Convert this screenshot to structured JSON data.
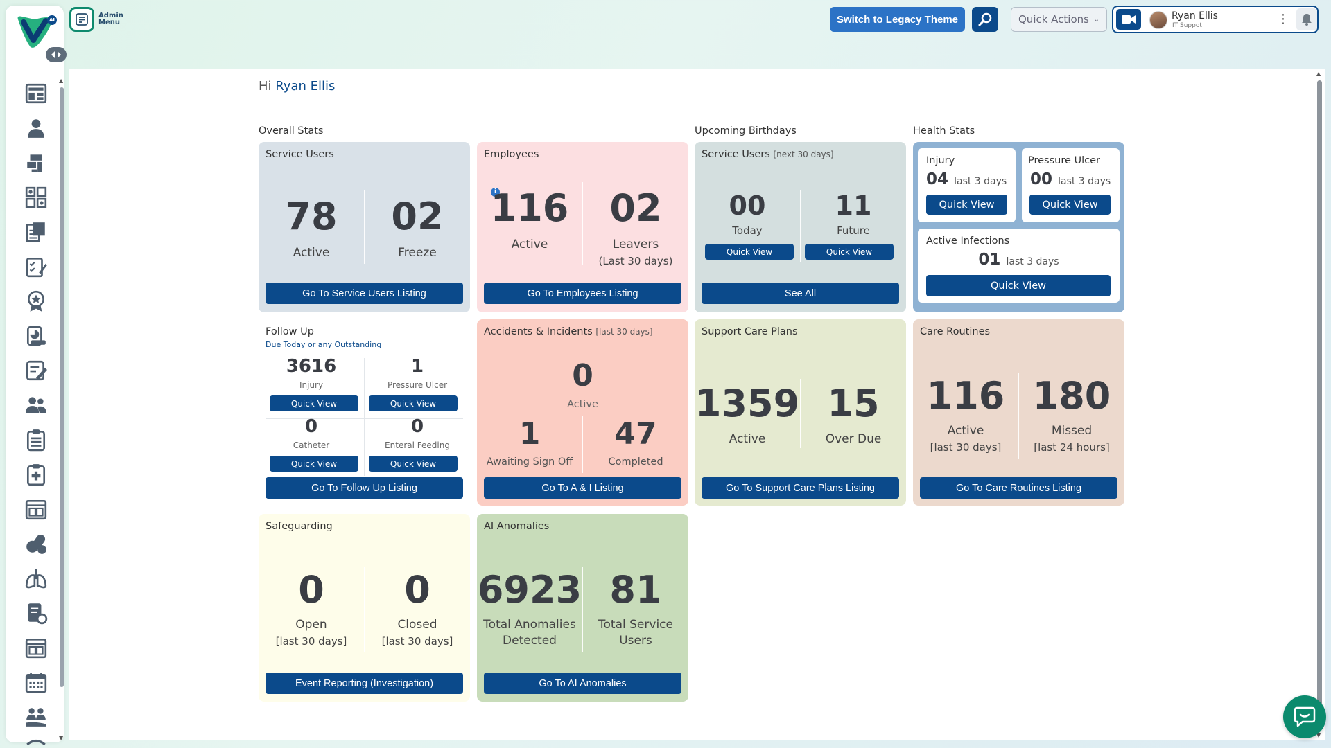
{
  "brand": {
    "logo_badge": "AI",
    "accent": "#0b4a8b",
    "green": "#0f8a6e"
  },
  "admin_menu": {
    "label_line1": "Admin",
    "label_line2": "Menu"
  },
  "topbar": {
    "legacy_button": "Switch to Legacy Theme",
    "quick_actions": "Quick Actions",
    "user_name": "Ryan Ellis",
    "user_role": "IT Suppot"
  },
  "sidebar": {
    "icons": [
      "dashboard-icon",
      "person-icon",
      "hand-truck-icon",
      "apps-icon",
      "documents-icon",
      "checklist-edit-icon",
      "award-icon",
      "report-icon",
      "notes-edit-icon",
      "users-icon",
      "clipboard-list-icon",
      "medical-clipboard-icon",
      "calendar-grid-icon",
      "pills-icon",
      "lungs-icon",
      "document-settings-icon",
      "calendar-grid-2-icon",
      "calendar-icon",
      "group-care-icon",
      "more-icon"
    ]
  },
  "greeting": {
    "prefix": "Hi",
    "name": "Ryan Ellis"
  },
  "sections": {
    "overall": "Overall Stats",
    "birthdays": "Upcoming Birthdays",
    "health": "Health Stats"
  },
  "service_users": {
    "title": "Service Users",
    "active_value": "78",
    "active_label": "Active",
    "freeze_value": "02",
    "freeze_label": "Freeze",
    "button": "Go To Service Users Listing"
  },
  "employees": {
    "title": "Employees",
    "active_value": "116",
    "active_label": "Active",
    "leavers_value": "02",
    "leavers_label": "Leavers",
    "leavers_sub": "(Last 30 days)",
    "button": "Go To Employees Listing"
  },
  "birthdays": {
    "title": "Service Users",
    "title_sub": "[next 30 days]",
    "today_value": "00",
    "today_label": "Today",
    "future_value": "11",
    "future_label": "Future",
    "quick_view": "Quick View",
    "button": "See All"
  },
  "health": {
    "injury_title": "Injury",
    "injury_value": "04",
    "injury_sub": "last 3 days",
    "ulcer_title": "Pressure Ulcer",
    "ulcer_value": "00",
    "ulcer_sub": "last 3 days",
    "infections_title": "Active Infections",
    "infections_value": "01",
    "infections_sub": "last 3 days",
    "quick_view": "Quick View"
  },
  "follow_up": {
    "title": "Follow Up",
    "subtitle": "Due Today or any Outstanding",
    "injury_value": "3616",
    "injury_label": "Injury",
    "ulcer_value": "1",
    "ulcer_label": "Pressure Ulcer",
    "catheter_value": "0",
    "catheter_label": "Catheter",
    "feeding_value": "0",
    "feeding_label": "Enteral Feeding",
    "quick_view": "Quick View",
    "button": "Go To Follow Up Listing"
  },
  "accidents": {
    "title": "Accidents & Incidents",
    "title_sub": "[last 30 days]",
    "active_value": "0",
    "active_label": "Active",
    "awaiting_value": "1",
    "awaiting_label": "Awaiting Sign Off",
    "completed_value": "47",
    "completed_label": "Completed",
    "button": "Go To A & I Listing"
  },
  "care_plans": {
    "title": "Support Care Plans",
    "active_value": "1359",
    "active_label": "Active",
    "overdue_value": "15",
    "overdue_label": "Over Due",
    "button": "Go To Support Care Plans Listing"
  },
  "care_routines": {
    "title": "Care Routines",
    "active_value": "116",
    "active_label": "Active",
    "active_sub": "[last 30 days]",
    "missed_value": "180",
    "missed_label": "Missed",
    "missed_sub": "[last 24 hours]",
    "button": "Go To Care Routines Listing"
  },
  "safeguarding": {
    "title": "Safeguarding",
    "open_value": "0",
    "open_label": "Open",
    "open_sub": "[last 30 days]",
    "closed_value": "0",
    "closed_label": "Closed",
    "closed_sub": "[last 30 days]",
    "button": "Event Reporting (Investigation)"
  },
  "ai_anomalies": {
    "title": "AI Anomalies",
    "total_value": "6923",
    "total_label_1": "Total Anomalies",
    "total_label_2": "Detected",
    "users_value": "81",
    "users_label_1": "Total Service",
    "users_label_2": "Users",
    "button": "Go To AI Anomalies"
  }
}
